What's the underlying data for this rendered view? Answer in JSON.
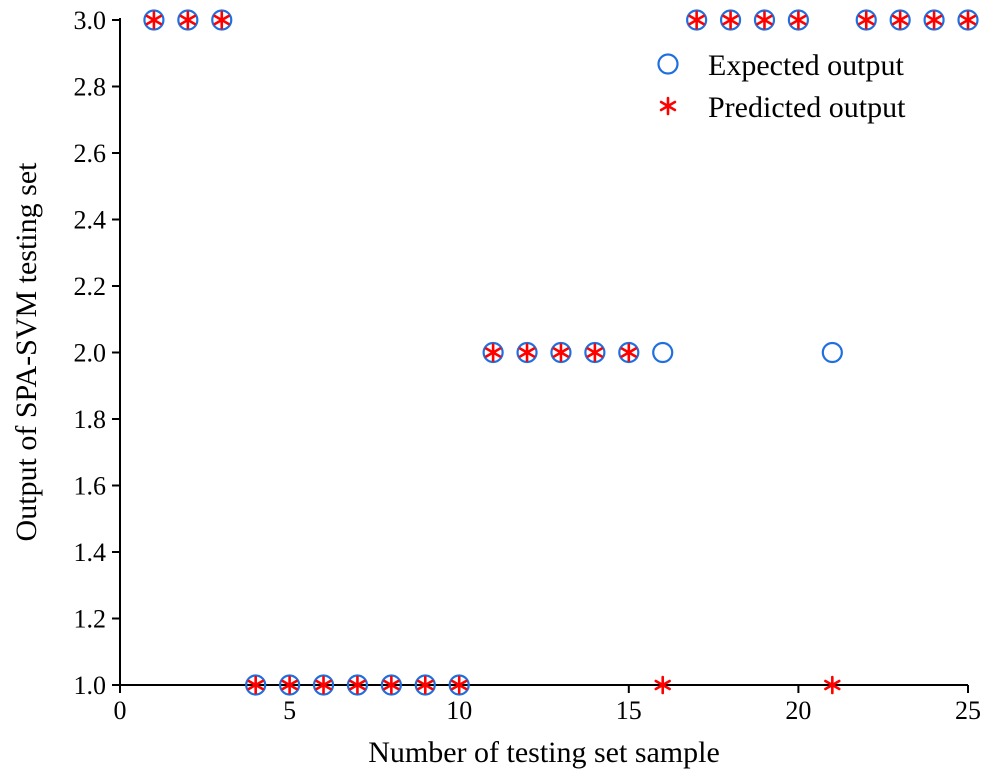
{
  "chart_data": {
    "type": "scatter",
    "xlabel": "Number of testing set sample",
    "ylabel": "Output of SPA-SVM testing set",
    "xlim": [
      0,
      25
    ],
    "ylim": [
      1.0,
      3.0
    ],
    "xticks": [
      "0",
      "5",
      "10",
      "15",
      "20",
      "25"
    ],
    "yticks": [
      "1.0",
      "1.2",
      "1.4",
      "1.6",
      "1.8",
      "2.0",
      "2.2",
      "2.4",
      "2.6",
      "2.8",
      "3.0"
    ],
    "grid": false,
    "legend_position": "top-right",
    "series": [
      {
        "name": "Expected output",
        "marker": "circle",
        "color": "#1f6fe0",
        "x": [
          1,
          2,
          3,
          4,
          5,
          6,
          7,
          8,
          9,
          10,
          11,
          12,
          13,
          14,
          15,
          16,
          17,
          18,
          19,
          20,
          21,
          22,
          23,
          24,
          25
        ],
        "y": [
          3,
          3,
          3,
          1,
          1,
          1,
          1,
          1,
          1,
          1,
          2,
          2,
          2,
          2,
          2,
          2,
          3,
          3,
          3,
          3,
          2,
          3,
          3,
          3,
          3
        ]
      },
      {
        "name": "Predicted output",
        "marker": "asterisk",
        "color": "#ff0000",
        "x": [
          1,
          2,
          3,
          4,
          5,
          6,
          7,
          8,
          9,
          10,
          11,
          12,
          13,
          14,
          15,
          16,
          17,
          18,
          19,
          20,
          21,
          22,
          23,
          24,
          25
        ],
        "y": [
          3,
          3,
          3,
          1,
          1,
          1,
          1,
          1,
          1,
          1,
          2,
          2,
          2,
          2,
          2,
          1,
          3,
          3,
          3,
          3,
          1,
          3,
          3,
          3,
          3
        ]
      }
    ]
  }
}
